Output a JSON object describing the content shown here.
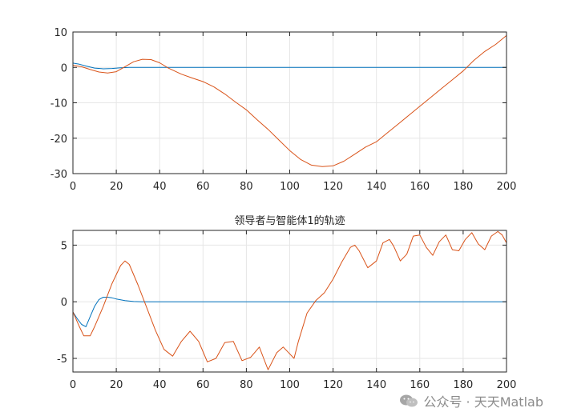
{
  "chart_data": [
    {
      "type": "line",
      "title": "",
      "xlabel": "",
      "ylabel": "",
      "xlim": [
        0,
        200
      ],
      "ylim": [
        -30,
        10
      ],
      "xticks": [
        0,
        20,
        40,
        60,
        80,
        100,
        120,
        140,
        160,
        180,
        200
      ],
      "yticks": [
        -30,
        -20,
        -10,
        0,
        10
      ],
      "grid": true,
      "series": [
        {
          "color": "#0072BD",
          "x": [
            0,
            3,
            6,
            10,
            14,
            18,
            22,
            26,
            30,
            40,
            60,
            100,
            150,
            200
          ],
          "y": [
            1.2,
            0.9,
            0.4,
            -0.2,
            -0.4,
            -0.3,
            -0.1,
            0.0,
            0.0,
            0.0,
            0.0,
            0.0,
            0.0,
            0.0
          ]
        },
        {
          "color": "#D95319",
          "x": [
            0,
            4,
            8,
            12,
            16,
            20,
            24,
            28,
            32,
            36,
            40,
            44,
            50,
            55,
            60,
            65,
            70,
            75,
            80,
            85,
            90,
            95,
            100,
            105,
            110,
            115,
            120,
            125,
            130,
            135,
            140,
            145,
            150,
            155,
            160,
            165,
            170,
            175,
            180,
            185,
            190,
            195,
            200
          ],
          "y": [
            0.6,
            0.2,
            -0.6,
            -1.3,
            -1.6,
            -1.2,
            0.2,
            1.6,
            2.3,
            2.2,
            1.3,
            -0.2,
            -1.9,
            -3.0,
            -4.0,
            -5.5,
            -7.5,
            -9.8,
            -12.0,
            -14.8,
            -17.5,
            -20.5,
            -23.5,
            -26.0,
            -27.6,
            -28.0,
            -27.8,
            -26.5,
            -24.5,
            -22.5,
            -21.0,
            -18.5,
            -16.0,
            -13.5,
            -11.0,
            -8.5,
            -6.0,
            -3.5,
            -1.0,
            2.0,
            4.5,
            6.5,
            9.0
          ]
        }
      ]
    },
    {
      "type": "line",
      "title": "领导者与智能体1的轨迹",
      "xlabel": "",
      "ylabel": "",
      "xlim": [
        0,
        200
      ],
      "ylim": [
        -6.2,
        6.3
      ],
      "xticks": [
        0,
        20,
        40,
        60,
        80,
        100,
        120,
        140,
        160,
        180,
        200
      ],
      "yticks": [
        -5,
        0,
        5
      ],
      "grid": true,
      "series": [
        {
          "color": "#0072BD",
          "x": [
            0,
            2,
            4,
            6,
            8,
            10,
            12,
            14,
            16,
            18,
            20,
            24,
            28,
            32,
            40,
            60,
            100,
            150,
            200
          ],
          "y": [
            -0.9,
            -1.5,
            -2.0,
            -2.2,
            -1.3,
            -0.4,
            0.2,
            0.4,
            0.4,
            0.35,
            0.25,
            0.1,
            0.02,
            0.0,
            0.0,
            0.0,
            0.0,
            0.0,
            0.0
          ]
        },
        {
          "color": "#D95319",
          "x": [
            0,
            3,
            5,
            8,
            10,
            14,
            18,
            22,
            24,
            26,
            30,
            34,
            38,
            42,
            46,
            50,
            54,
            58,
            62,
            66,
            70,
            74,
            78,
            82,
            86,
            88,
            90,
            94,
            97,
            100,
            102,
            104,
            108,
            112,
            116,
            120,
            124,
            128,
            130,
            132,
            136,
            140,
            143,
            146,
            148,
            151,
            154,
            157,
            160,
            163,
            166,
            169,
            172,
            175,
            178,
            181,
            184,
            187,
            190,
            193,
            196,
            198,
            200
          ],
          "y": [
            -0.9,
            -2.2,
            -3.0,
            -3.0,
            -2.2,
            -0.4,
            1.6,
            3.2,
            3.6,
            3.3,
            1.5,
            -0.5,
            -2.5,
            -4.2,
            -4.8,
            -3.5,
            -2.6,
            -3.5,
            -5.3,
            -5.0,
            -3.6,
            -3.5,
            -5.2,
            -4.9,
            -4.0,
            -5.0,
            -6.0,
            -4.5,
            -4.0,
            -4.6,
            -5.0,
            -3.5,
            -1.0,
            0.1,
            0.8,
            2.0,
            3.5,
            4.8,
            5.0,
            4.5,
            3.0,
            3.6,
            5.2,
            5.5,
            4.9,
            3.6,
            4.2,
            5.8,
            5.9,
            4.8,
            4.1,
            5.3,
            5.9,
            4.6,
            4.5,
            5.5,
            6.1,
            5.1,
            4.6,
            5.8,
            6.2,
            5.9,
            5.2
          ]
        }
      ]
    }
  ],
  "watermark": {
    "icon": "wechat-icon",
    "text": "公众号 · 天天Matlab"
  }
}
